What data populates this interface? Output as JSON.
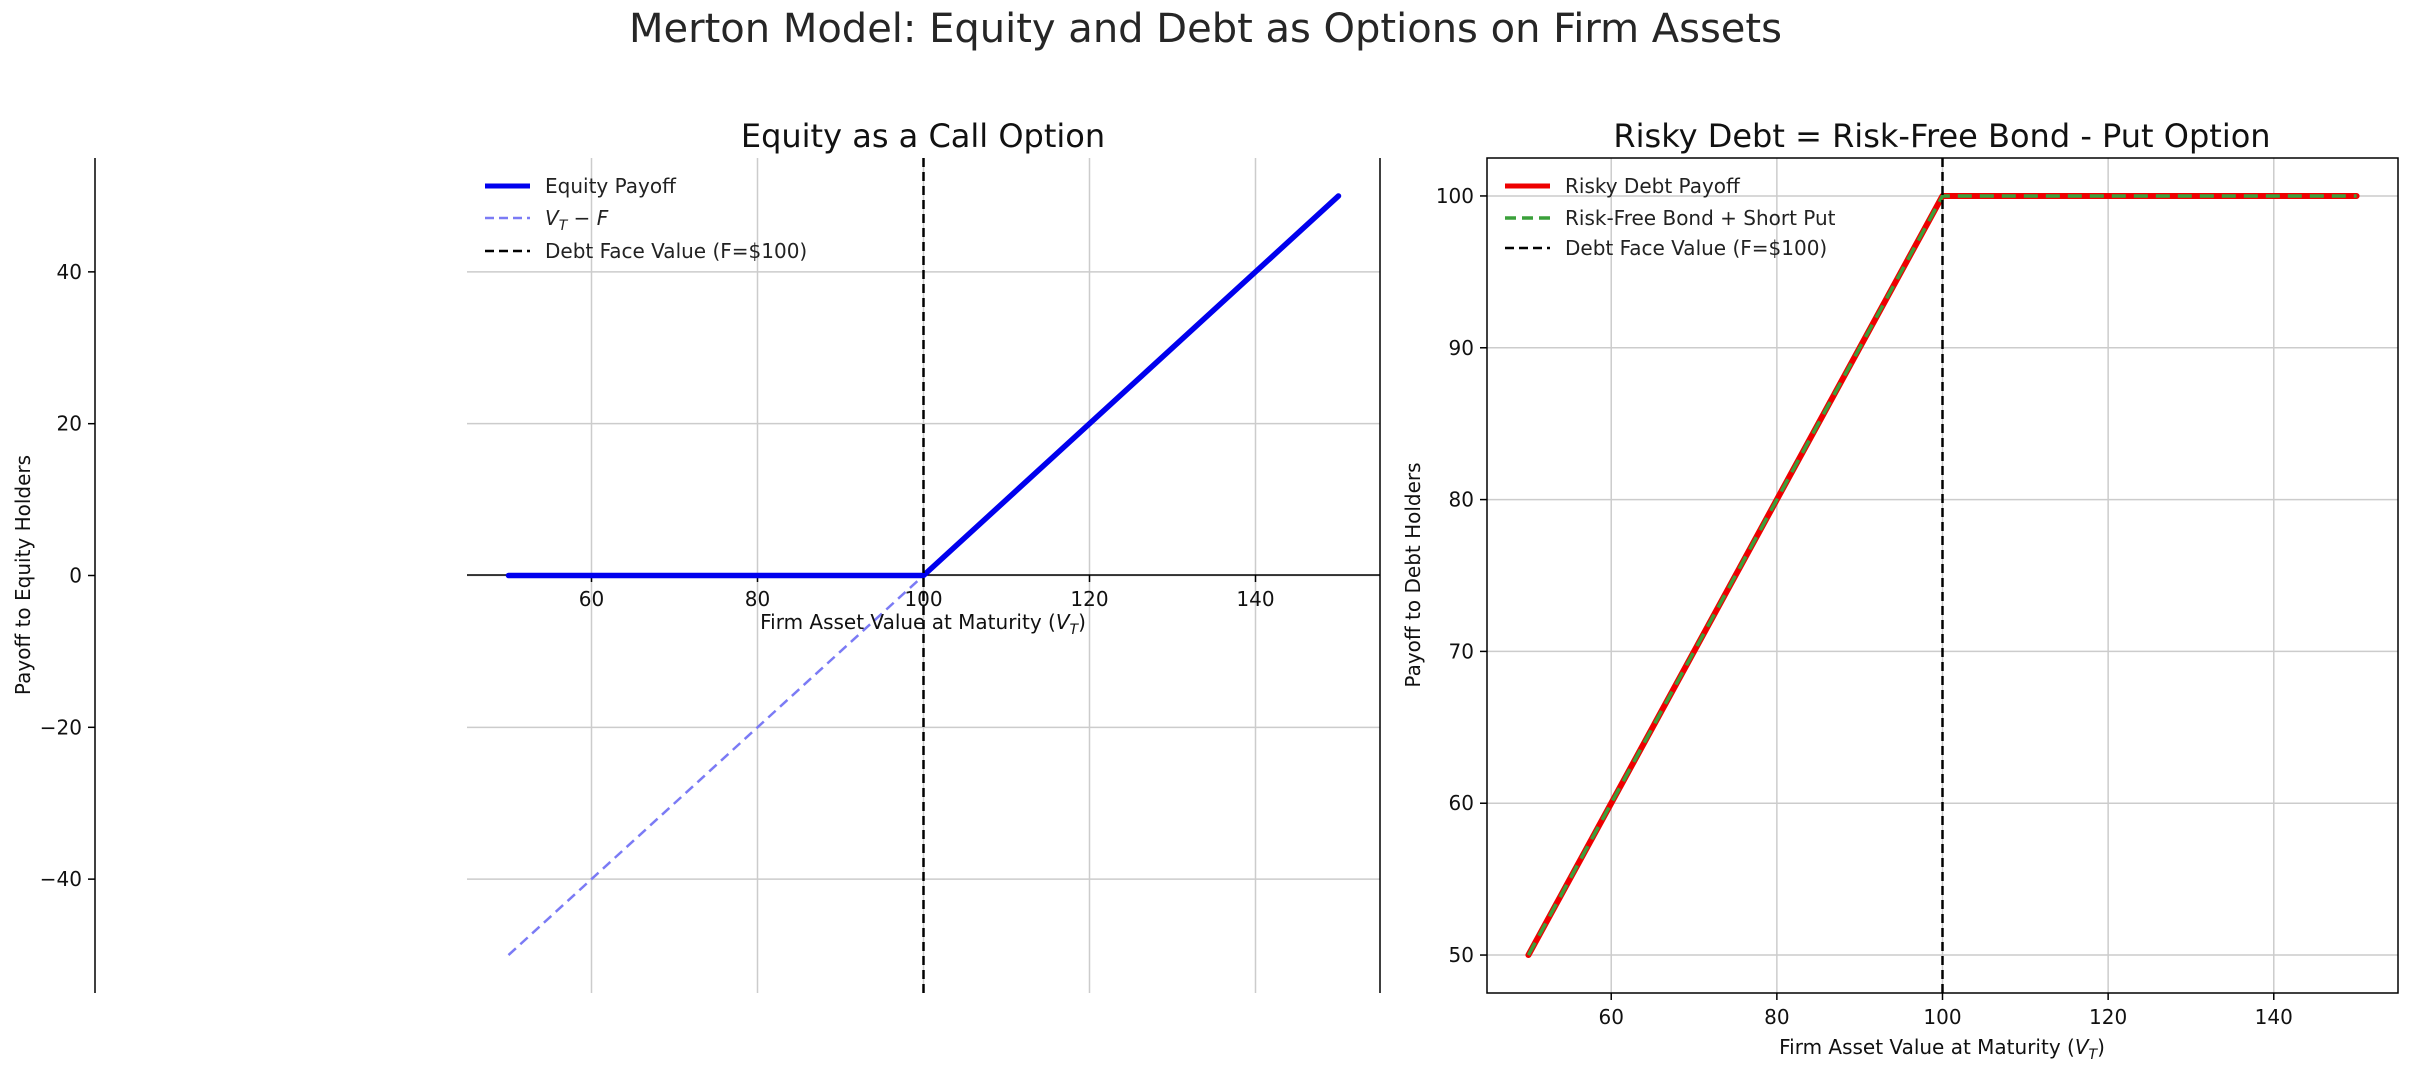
{
  "figure": {
    "suptitle": "Merton Model: Equity and Debt as Options on Firm Assets"
  },
  "chart_data": [
    {
      "type": "line",
      "title": "Equity as a Call Option",
      "xlabel": "Firm Asset Value at Maturity (V_T)",
      "xlabel_main": "Firm Asset Value at Maturity (",
      "xlabel_var": "V",
      "xlabel_sub": "T",
      "xlabel_close": ")",
      "ylabel": "Payoff to Equity Holders",
      "xlim": [
        45,
        155
      ],
      "ylim": [
        -55,
        55
      ],
      "xticks": [
        60,
        80,
        100,
        120,
        140
      ],
      "yticks": [
        -40,
        -20,
        0,
        20,
        40
      ],
      "grid": true,
      "legend_position": "upper left",
      "series": [
        {
          "name": "Equity Payoff",
          "style": "solid",
          "color": "#0000ee",
          "x": [
            50,
            100,
            150
          ],
          "y": [
            0,
            0,
            50
          ]
        },
        {
          "name": "V_T - F",
          "legend_main": "V",
          "legend_sub": "T",
          "legend_rest": " − F",
          "style": "dashed",
          "color": "#7b7bf5",
          "x": [
            50,
            150
          ],
          "y": [
            -50,
            50
          ]
        }
      ],
      "vline": {
        "x": 100,
        "name": "Debt Face Value (F=$100)",
        "color": "#000000"
      }
    },
    {
      "type": "line",
      "title": "Risky Debt = Risk-Free Bond - Put Option",
      "xlabel": "Firm Asset Value at Maturity (V_T)",
      "xlabel_main": "Firm Asset Value at Maturity (",
      "xlabel_var": "V",
      "xlabel_sub": "T",
      "xlabel_close": ")",
      "ylabel": "Payoff to Debt Holders",
      "xlim": [
        45,
        155
      ],
      "ylim": [
        47.5,
        102.5
      ],
      "xticks": [
        60,
        80,
        100,
        120,
        140
      ],
      "yticks": [
        50,
        60,
        70,
        80,
        90,
        100
      ],
      "grid": true,
      "legend_position": "upper left",
      "series": [
        {
          "name": "Risky Debt Payoff",
          "style": "solid",
          "color": "#ee0000",
          "x": [
            50,
            100,
            150
          ],
          "y": [
            50,
            100,
            100
          ]
        },
        {
          "name": "Risk-Free Bond + Short Put",
          "style": "dashed",
          "color": "#3aa03a",
          "x": [
            50,
            100,
            150
          ],
          "y": [
            50,
            100,
            100
          ]
        }
      ],
      "vline": {
        "x": 100,
        "name": "Debt Face Value (F=$100)",
        "color": "#000000"
      }
    }
  ]
}
